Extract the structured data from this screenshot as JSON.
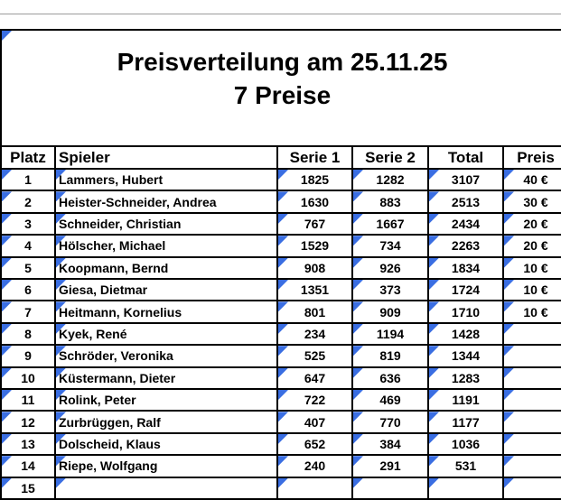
{
  "colors": {
    "marker_blue": "#3a6ee2",
    "grid_border": "#000000",
    "page_break_gray": "#9c9c9c"
  },
  "icons": {
    "cell_marker": "blue-corner-triangle"
  },
  "header": {
    "title_line1": "Preisverteilung am 25.11.25",
    "title_line2": "7 Preise"
  },
  "table": {
    "headers": [
      "Platz",
      "Spieler",
      "Serie 1",
      "Serie 2",
      "Total",
      "Preis"
    ],
    "column_keys": [
      "platz",
      "spieler",
      "serie1",
      "serie2",
      "total",
      "preis"
    ],
    "rows": [
      {
        "platz": "1",
        "spieler": "Lammers, Hubert",
        "serie1": "1825",
        "serie2": "1282",
        "total": "3107",
        "preis": "40 €"
      },
      {
        "platz": "2",
        "spieler": "Heister-Schneider, Andrea",
        "serie1": "1630",
        "serie2": "883",
        "total": "2513",
        "preis": "30 €"
      },
      {
        "platz": "3",
        "spieler": "Schneider, Christian",
        "serie1": "767",
        "serie2": "1667",
        "total": "2434",
        "preis": "20 €"
      },
      {
        "platz": "4",
        "spieler": "Hölscher, Michael",
        "serie1": "1529",
        "serie2": "734",
        "total": "2263",
        "preis": "20 €"
      },
      {
        "platz": "5",
        "spieler": "Koopmann, Bernd",
        "serie1": "908",
        "serie2": "926",
        "total": "1834",
        "preis": "10 €"
      },
      {
        "platz": "6",
        "spieler": "Giesa, Dietmar",
        "serie1": "1351",
        "serie2": "373",
        "total": "1724",
        "preis": "10 €"
      },
      {
        "platz": "7",
        "spieler": "Heitmann, Kornelius",
        "serie1": "801",
        "serie2": "909",
        "total": "1710",
        "preis": "10 €"
      },
      {
        "platz": "8",
        "spieler": "Kyek, René",
        "serie1": "234",
        "serie2": "1194",
        "total": "1428",
        "preis": ""
      },
      {
        "platz": "9",
        "spieler": "Schröder, Veronika",
        "serie1": "525",
        "serie2": "819",
        "total": "1344",
        "preis": ""
      },
      {
        "platz": "10",
        "spieler": "Küstermann, Dieter",
        "serie1": "647",
        "serie2": "636",
        "total": "1283",
        "preis": ""
      },
      {
        "platz": "11",
        "spieler": "Rolink, Peter",
        "serie1": "722",
        "serie2": "469",
        "total": "1191",
        "preis": ""
      },
      {
        "platz": "12",
        "spieler": "Zurbrüggen, Ralf",
        "serie1": "407",
        "serie2": "770",
        "total": "1177",
        "preis": ""
      },
      {
        "platz": "13",
        "spieler": "Dolscheid, Klaus",
        "serie1": "652",
        "serie2": "384",
        "total": "1036",
        "preis": ""
      },
      {
        "platz": "14",
        "spieler": "Riepe, Wolfgang",
        "serie1": "240",
        "serie2": "291",
        "total": "531",
        "preis": ""
      },
      {
        "platz": "15",
        "spieler": "",
        "serie1": "",
        "serie2": "",
        "total": "",
        "preis": ""
      }
    ]
  }
}
